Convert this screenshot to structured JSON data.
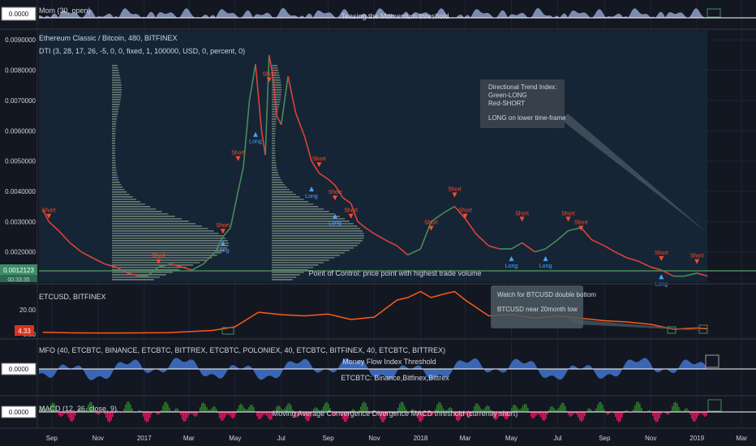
{
  "chart_data": [
    {
      "type": "area",
      "panel": "momentum",
      "title": "Mom (30, open)",
      "annotation": "Teasing the Momentum threshold",
      "value_badge": "0.0000",
      "color": "#8fa0c8"
    },
    {
      "type": "line",
      "panel": "main",
      "title": "Ethereum Classic / Bitcoin, 480, BITFINEX",
      "indicator": "DTI (3, 28, 17, 26, -5, 0, 0, fixed, 1, 100000, USD, 0, percent, 0)",
      "y_ticks": [
        "0.0090000",
        "0.0080000",
        "0.0070000",
        "0.0060000",
        "0.0050000",
        "0.0040000",
        "0.0030000",
        "0.0020000"
      ],
      "ylim": [
        0.001,
        0.0093
      ],
      "current_badge": "0.0012123",
      "badge_below": "00:33:35",
      "series": [
        {
          "name": "ETCBTC",
          "x": [
            "2016-08-20",
            "2016-08-28",
            "2016-09-10",
            "2016-09-25",
            "2016-10-10",
            "2016-10-25",
            "2016-11-10",
            "2016-11-25",
            "2016-12-10",
            "2016-12-25",
            "2017-01-05",
            "2017-01-20",
            "2017-02-05",
            "2017-02-20",
            "2017-03-05",
            "2017-03-20",
            "2017-04-05",
            "2017-04-15",
            "2017-04-25",
            "2017-05-05",
            "2017-05-12",
            "2017-05-20",
            "2017-05-28",
            "2017-06-05",
            "2017-06-10",
            "2017-06-15",
            "2017-06-20",
            "2017-06-25",
            "2017-07-01",
            "2017-07-10",
            "2017-07-20",
            "2017-08-01",
            "2017-08-10",
            "2017-08-20",
            "2017-09-01",
            "2017-09-10",
            "2017-09-20",
            "2017-10-01",
            "2017-10-10",
            "2017-10-20",
            "2017-11-01",
            "2017-11-15",
            "2017-12-01",
            "2017-12-15",
            "2018-01-01",
            "2018-01-15",
            "2018-02-01",
            "2018-02-15",
            "2018-03-01",
            "2018-03-15",
            "2018-04-01",
            "2018-04-15",
            "2018-05-01",
            "2018-05-15",
            "2018-06-01",
            "2018-06-15",
            "2018-07-01",
            "2018-07-15",
            "2018-08-01",
            "2018-08-15",
            "2018-09-01",
            "2018-09-15",
            "2018-10-01",
            "2018-10-15",
            "2018-11-01",
            "2018-11-15",
            "2018-12-01",
            "2018-12-15",
            "2019-01-01",
            "2019-01-15"
          ],
          "values": [
            0.0034,
            0.003,
            0.0027,
            0.0023,
            0.002,
            0.0018,
            0.0016,
            0.0015,
            0.0013,
            0.0012,
            0.0012,
            0.0015,
            0.0016,
            0.0015,
            0.0014,
            0.0016,
            0.002,
            0.0025,
            0.0028,
            0.004,
            0.0048,
            0.007,
            0.0082,
            0.006,
            0.0052,
            0.0085,
            0.0078,
            0.0065,
            0.0062,
            0.0078,
            0.0066,
            0.0058,
            0.005,
            0.0046,
            0.0044,
            0.0042,
            0.0038,
            0.0036,
            0.003,
            0.0028,
            0.0026,
            0.0024,
            0.0022,
            0.0019,
            0.0021,
            0.003,
            0.0033,
            0.0035,
            0.0031,
            0.0026,
            0.0022,
            0.0021,
            0.0021,
            0.0023,
            0.002,
            0.0021,
            0.0024,
            0.0027,
            0.0028,
            0.0024,
            0.0022,
            0.002,
            0.0018,
            0.0017,
            0.0015,
            0.0014,
            0.0012,
            0.0012,
            0.0013,
            0.0012
          ]
        }
      ],
      "signals": [
        {
          "label": "Short",
          "date": "2016-08-28",
          "value": 0.0031
        },
        {
          "label": "Short",
          "date": "2017-01-20",
          "value": 0.0016
        },
        {
          "label": "Short",
          "date": "2017-04-15",
          "value": 0.0026
        },
        {
          "label": "Long",
          "date": "2017-04-15",
          "value": 0.0022
        },
        {
          "label": "Short",
          "date": "2017-05-05",
          "value": 0.005
        },
        {
          "label": "Long",
          "date": "2017-05-28",
          "value": 0.0058
        },
        {
          "label": "Short",
          "date": "2017-06-15",
          "value": 0.0076
        },
        {
          "label": "Long",
          "date": "2017-08-10",
          "value": 0.004
        },
        {
          "label": "Short",
          "date": "2017-08-20",
          "value": 0.0048
        },
        {
          "label": "Short",
          "date": "2017-09-10",
          "value": 0.0037
        },
        {
          "label": "Long",
          "date": "2017-09-10",
          "value": 0.0031
        },
        {
          "label": "Short",
          "date": "2017-10-01",
          "value": 0.0031
        },
        {
          "label": "Short",
          "date": "2018-02-15",
          "value": 0.0038
        },
        {
          "label": "Short",
          "date": "2018-01-15",
          "value": 0.0027
        },
        {
          "label": "Short",
          "date": "2018-03-01",
          "value": 0.0031
        },
        {
          "label": "Short",
          "date": "2018-05-15",
          "value": 0.003
        },
        {
          "label": "Long",
          "date": "2018-05-01",
          "value": 0.0017
        },
        {
          "label": "Long",
          "date": "2018-06-15",
          "value": 0.0017
        },
        {
          "label": "Short",
          "date": "2018-07-15",
          "value": 0.003
        },
        {
          "label": "Short",
          "date": "2018-08-01",
          "value": 0.0027
        },
        {
          "label": "Short",
          "date": "2018-11-15",
          "value": 0.0017
        },
        {
          "label": "Long",
          "date": "2018-11-15",
          "value": 0.0011
        },
        {
          "label": "Short",
          "date": "2019-01-01",
          "value": 0.0016
        }
      ],
      "annotations": [
        {
          "name": "dti-note",
          "lines": [
            "Directional Trend Index:",
            "Green-LONG",
            "Red-SHORT",
            "",
            "LONG on lower time-frame"
          ]
        },
        {
          "name": "poc-note",
          "lines": [
            "Point of Control: price point with highest trade volume"
          ]
        }
      ]
    },
    {
      "type": "line",
      "panel": "etcusd",
      "title": "ETCUSD, BITFINEX",
      "y_ticks": [
        "20.00",
        "0.00"
      ],
      "current_badge": "4.33",
      "series": [
        {
          "name": "ETCUSD",
          "x": [
            "2016-08-20",
            "2016-10-01",
            "2016-12-01",
            "2017-02-01",
            "2017-04-01",
            "2017-05-01",
            "2017-06-01",
            "2017-07-01",
            "2017-08-01",
            "2017-09-01",
            "2017-10-01",
            "2017-11-01",
            "2017-12-01",
            "2017-12-15",
            "2018-01-01",
            "2018-01-15",
            "2018-02-01",
            "2018-02-15",
            "2018-03-01",
            "2018-04-01",
            "2018-05-01",
            "2018-06-01",
            "2018-07-01",
            "2018-08-01",
            "2018-09-01",
            "2018-10-01",
            "2018-11-01",
            "2018-12-01",
            "2019-01-01",
            "2019-01-15"
          ],
          "values": [
            1.5,
            1.0,
            0.9,
            1.2,
            3.0,
            6.0,
            18.0,
            16.0,
            15.0,
            16.5,
            12.0,
            14.0,
            28.0,
            30.0,
            35.0,
            30.0,
            33.0,
            35.0,
            28.0,
            15.0,
            16.0,
            13.0,
            15.0,
            13.0,
            11.0,
            10.0,
            8.0,
            4.0,
            5.0,
            4.3
          ]
        }
      ],
      "annotations": [
        {
          "name": "etc-note",
          "lines": [
            "Watch for BTCUSD double bottom",
            "",
            "BTCUSD near 20month low"
          ]
        }
      ]
    },
    {
      "type": "area",
      "panel": "mfo",
      "title": "MFO (40, ETCBTC, BINANCE, ETCBTC, BITTREX, ETCBTC, POLONIEX, 40, ETCBTC, BITFINEX, 40, ETCBTC, BITTREX)",
      "annotations": [
        "Money Flow Index Threshold",
        "ETCBTC: Binance,Bitfinex,Bittrex"
      ],
      "value_badge": "0.0000",
      "color": "#3f6fc4"
    },
    {
      "type": "bar",
      "panel": "macd",
      "title": "MACD (12, 26, close, 9)",
      "annotation": "Moving Average Convergence Divergence MACD threshold (currently short)",
      "value_badge": "0.0000",
      "colors": {
        "positive": "#2a7a2a",
        "negative": "#e0145c"
      }
    }
  ],
  "x_axis": {
    "labels": [
      {
        "text": "Sep",
        "date": "2016-09-01"
      },
      {
        "text": "Nov",
        "date": "2016-11-01"
      },
      {
        "text": "2017",
        "date": "2017-01-01"
      },
      {
        "text": "Mar",
        "date": "2017-03-01"
      },
      {
        "text": "May",
        "date": "2017-05-01"
      },
      {
        "text": "Jul",
        "date": "2017-07-01"
      },
      {
        "text": "Sep",
        "date": "2017-09-01"
      },
      {
        "text": "Nov",
        "date": "2017-11-01"
      },
      {
        "text": "2018",
        "date": "2018-01-01"
      },
      {
        "text": "Mar",
        "date": "2018-03-01"
      },
      {
        "text": "May",
        "date": "2018-05-01"
      },
      {
        "text": "Jul",
        "date": "2018-07-01"
      },
      {
        "text": "Sep",
        "date": "2018-09-01"
      },
      {
        "text": "Nov",
        "date": "2018-11-01"
      },
      {
        "text": "2019",
        "date": "2019-01-01"
      },
      {
        "text": "Mar",
        "date": "2019-03-01"
      }
    ]
  },
  "colors": {
    "background": "#131722",
    "grid": "#1e2433",
    "up": "#4a8a5a",
    "down": "#e0413a",
    "long": "#4aa3ff",
    "short": "#ff4a2a",
    "etc_line": "#ff5a14",
    "badge_green": "#3c8c68",
    "badge_red": "#d8331f"
  }
}
